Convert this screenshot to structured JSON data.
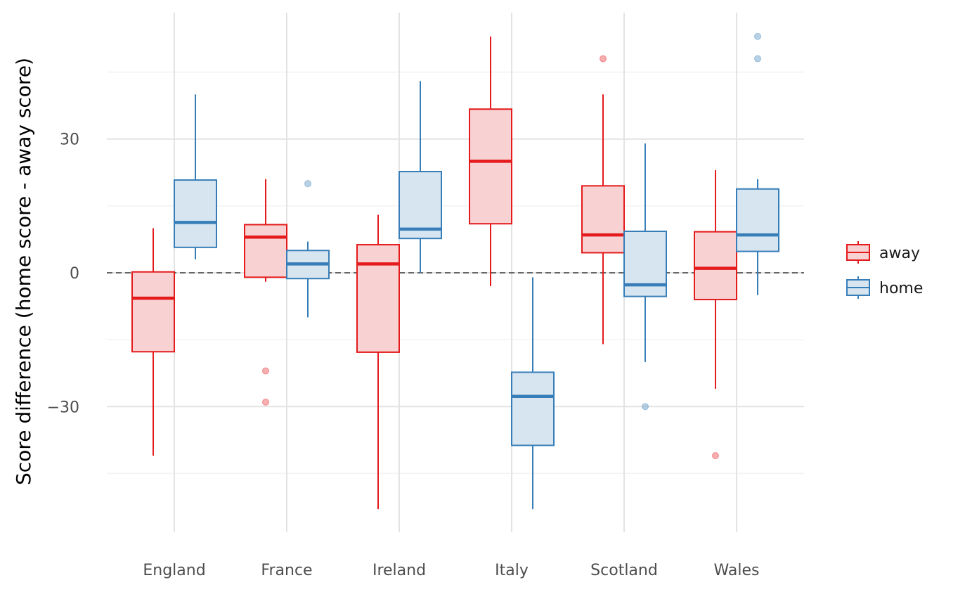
{
  "chart_data": {
    "type": "boxplot",
    "ylabel": "Score difference (home score - away score)",
    "xlabel": "",
    "categories": [
      "England",
      "France",
      "Ireland",
      "Italy",
      "Scotland",
      "Wales"
    ],
    "yticks": [
      -30,
      0,
      30
    ],
    "ytick_labels": [
      "−30",
      "0",
      "30"
    ],
    "ylim": [
      -58.5,
      58
    ],
    "reference_line": 0,
    "grid": true,
    "legend_position": "right",
    "series": [
      {
        "name": "away",
        "color": "#e41a1c",
        "fill": "#f8d1d2",
        "boxes": [
          {
            "category": "England",
            "lower_whisker": -41,
            "q1": -17.7,
            "median": -5.7,
            "q3": 0.2,
            "upper_whisker": 10,
            "outliers": []
          },
          {
            "category": "France",
            "lower_whisker": -2,
            "q1": -1,
            "median": 8,
            "q3": 10.8,
            "upper_whisker": 21,
            "outliers": [
              -22,
              -29
            ]
          },
          {
            "category": "Ireland",
            "lower_whisker": -53,
            "q1": -17.8,
            "median": 2,
            "q3": 6.3,
            "upper_whisker": 13,
            "outliers": []
          },
          {
            "category": "Italy",
            "lower_whisker": -3,
            "q1": 11,
            "median": 25,
            "q3": 36.7,
            "upper_whisker": 53,
            "outliers": []
          },
          {
            "category": "Scotland",
            "lower_whisker": -16,
            "q1": 4.5,
            "median": 8.5,
            "q3": 19.5,
            "upper_whisker": 40,
            "outliers": [
              48
            ]
          },
          {
            "category": "Wales",
            "lower_whisker": -26,
            "q1": -6,
            "median": 1,
            "q3": 9.2,
            "upper_whisker": 23,
            "outliers": [
              -41
            ]
          }
        ]
      },
      {
        "name": "home",
        "color": "#377eb8",
        "fill": "#d7e5f1",
        "boxes": [
          {
            "category": "England",
            "lower_whisker": 3,
            "q1": 5.7,
            "median": 11.3,
            "q3": 20.8,
            "upper_whisker": 40,
            "outliers": []
          },
          {
            "category": "France",
            "lower_whisker": -10,
            "q1": -1.3,
            "median": 2,
            "q3": 5,
            "upper_whisker": 7,
            "outliers": [
              20
            ]
          },
          {
            "category": "Ireland",
            "lower_whisker": 0,
            "q1": 7.7,
            "median": 9.8,
            "q3": 22.7,
            "upper_whisker": 43,
            "outliers": []
          },
          {
            "category": "Italy",
            "lower_whisker": -53,
            "q1": -38.7,
            "median": -27.7,
            "q3": -22.3,
            "upper_whisker": -1,
            "outliers": []
          },
          {
            "category": "Scotland",
            "lower_whisker": -20,
            "q1": -5.3,
            "median": -2.7,
            "q3": 9.3,
            "upper_whisker": 29,
            "outliers": [
              -30
            ]
          },
          {
            "category": "Wales",
            "lower_whisker": -5,
            "q1": 4.8,
            "median": 8.5,
            "q3": 18.8,
            "upper_whisker": 21,
            "outliers": [
              48,
              53
            ]
          }
        ]
      }
    ]
  }
}
